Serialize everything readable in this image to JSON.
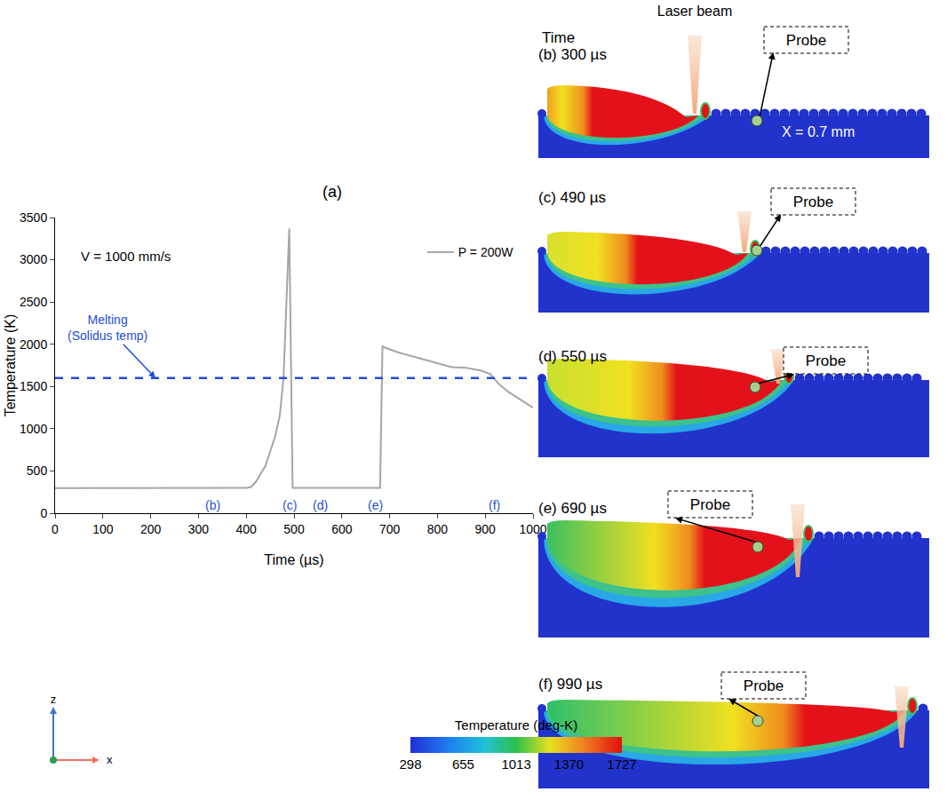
{
  "chart_data": {
    "type": "line",
    "title": "(a)",
    "x_label": "Time (µs)",
    "y_label": "Temperature (K)",
    "xlim": [
      0,
      1000
    ],
    "xticks": [
      0,
      100,
      200,
      300,
      400,
      500,
      600,
      700,
      800,
      900,
      1000
    ],
    "ylim": [
      0,
      3500
    ],
    "yticks": [
      0,
      500,
      1000,
      1500,
      2000,
      2500,
      3000,
      3500
    ],
    "grid": false,
    "legend": "upper right",
    "annotations": [
      {
        "text": "V = 1000 mm/s"
      }
    ],
    "reference_line": {
      "value": 1600,
      "label": [
        "Melting",
        "(Solidus temp)"
      ],
      "color": "#1f4ed8",
      "line_style": "dashed"
    },
    "time_markers": {
      "labels": [
        "(b)",
        "(c)",
        "(d)",
        "(e)",
        "(f)"
      ],
      "x": [
        330,
        490,
        555,
        670,
        920
      ]
    },
    "series": [
      {
        "name": "P = 200W",
        "color": "#a6a6a6",
        "x": [
          0,
          100,
          200,
          300,
          400,
          410,
          420,
          440,
          460,
          470,
          478,
          490,
          497,
          550,
          600,
          680,
          685,
          690,
          720,
          760,
          800,
          830,
          860,
          890,
          910,
          930,
          950,
          975,
          1000
        ],
        "values": [
          298,
          298,
          298,
          298,
          300,
          310,
          370,
          560,
          900,
          1150,
          1600,
          3370,
          300,
          300,
          300,
          300,
          1980,
          1960,
          1900,
          1840,
          1780,
          1730,
          1720,
          1690,
          1650,
          1520,
          1430,
          1340,
          1250
        ]
      }
    ]
  },
  "snapshots": {
    "header": "Laser beam",
    "time_label": "Time",
    "probe_label": "Probe",
    "position_note": "X = 0.7 mm",
    "panels": [
      {
        "label": "(b)",
        "time": "300 µs"
      },
      {
        "label": "(c)",
        "time": "490 µs"
      },
      {
        "label": "(d)",
        "time": "550 µs"
      },
      {
        "label": "(e)",
        "time": "690 µs"
      },
      {
        "label": "(f)",
        "time": "990 µs"
      }
    ]
  },
  "colorbar": {
    "title": "Temperature (deg-K)",
    "range": [
      298,
      1727
    ],
    "ticks": [
      298,
      655,
      1013,
      1370,
      1727
    ]
  },
  "axes_triad": {
    "labels": [
      "z",
      "x"
    ]
  }
}
